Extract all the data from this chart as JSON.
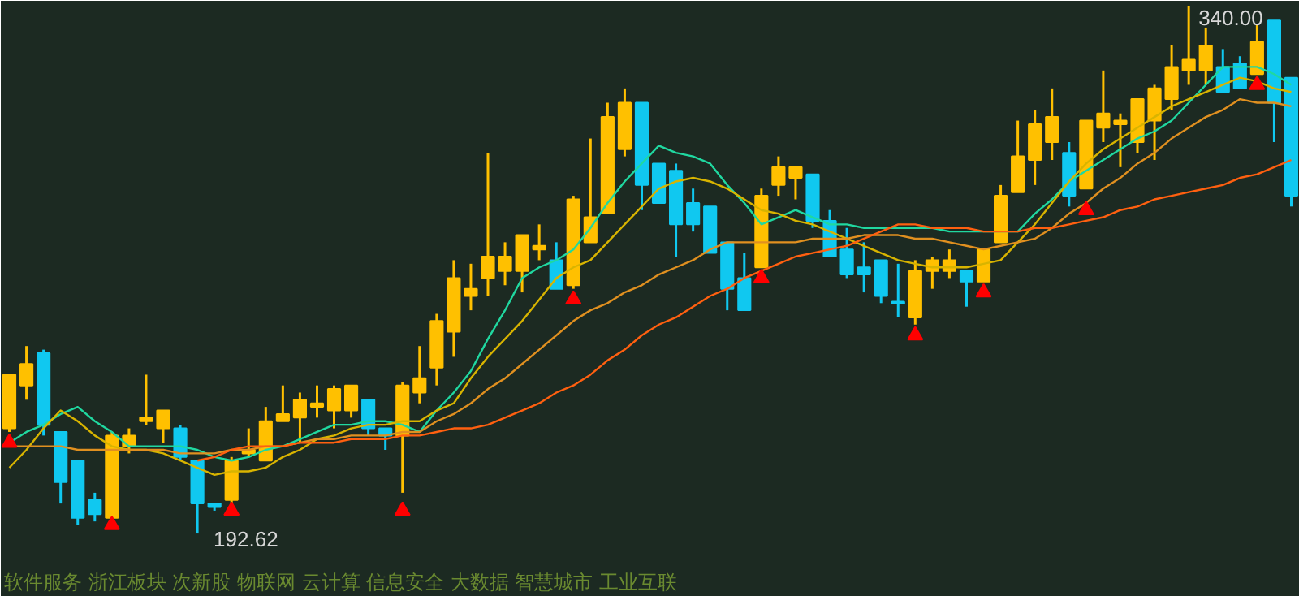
{
  "chart_data": {
    "type": "candlestick",
    "categories": [
      null,
      null,
      null,
      null,
      null,
      null,
      null,
      null,
      null,
      null,
      null,
      null,
      null,
      null,
      null,
      null,
      null,
      null,
      null,
      null,
      null,
      null,
      null,
      null,
      null,
      null,
      null,
      null,
      null,
      null,
      null,
      null,
      null,
      null,
      null,
      null,
      null,
      null,
      null,
      null,
      null,
      null,
      null,
      null,
      null,
      null,
      null,
      null,
      null,
      null,
      null,
      null,
      null,
      null,
      null,
      null,
      null,
      null,
      null,
      null,
      null,
      null,
      null,
      null,
      null,
      null,
      null,
      null,
      null,
      null,
      null,
      null,
      null,
      null,
      null,
      null
    ],
    "ohlc": [
      [
        222,
        237,
        221,
        237
      ],
      [
        234,
        245,
        230,
        240
      ],
      [
        243,
        244,
        220,
        223
      ],
      [
        221,
        221,
        201,
        207
      ],
      [
        213,
        213,
        195,
        197
      ],
      [
        202,
        204,
        196,
        198
      ],
      [
        197,
        221,
        196,
        220
      ],
      [
        217,
        222,
        215,
        220
      ],
      [
        224,
        237,
        223,
        225
      ],
      [
        222,
        227,
        218,
        227
      ],
      [
        222,
        223,
        213,
        214
      ],
      [
        213,
        213,
        192.62,
        201
      ],
      [
        201,
        201,
        199,
        200
      ],
      [
        202,
        214,
        201,
        213
      ],
      [
        215,
        222,
        214,
        216
      ],
      [
        213,
        228,
        213,
        224
      ],
      [
        224,
        234,
        224,
        226
      ],
      [
        225,
        232,
        218,
        230
      ],
      [
        228,
        234,
        225,
        229
      ],
      [
        227,
        234,
        222,
        233
      ],
      [
        227,
        234,
        225,
        234
      ],
      [
        230,
        230,
        220,
        222
      ],
      [
        222,
        222,
        216,
        220
      ],
      [
        220,
        235,
        204,
        234
      ],
      [
        232,
        245,
        229,
        236
      ],
      [
        239,
        254,
        234,
        252
      ],
      [
        249,
        269,
        242,
        264
      ],
      [
        259,
        268,
        255,
        261
      ],
      [
        264,
        299,
        259,
        270
      ],
      [
        266,
        274,
        262,
        270
      ],
      [
        266,
        276,
        260,
        276
      ],
      [
        272,
        279,
        269,
        273
      ],
      [
        269,
        274,
        261,
        261
      ],
      [
        262,
        287,
        261,
        286
      ],
      [
        274,
        303,
        274,
        281
      ],
      [
        282,
        313,
        282,
        309
      ],
      [
        300,
        317,
        298,
        313
      ],
      [
        313,
        313,
        283,
        290
      ],
      [
        296,
        296,
        285,
        285
      ],
      [
        294,
        296,
        270,
        279
      ],
      [
        285,
        289,
        277,
        279
      ],
      [
        284,
        284,
        271,
        271
      ],
      [
        274,
        274,
        255,
        261
      ],
      [
        264,
        271,
        255,
        255
      ],
      [
        267,
        289,
        267,
        287
      ],
      [
        290,
        298,
        287,
        295
      ],
      [
        292,
        295,
        286,
        295
      ],
      [
        293,
        293,
        278,
        280
      ],
      [
        280,
        283,
        270,
        270
      ],
      [
        272,
        278,
        264,
        265
      ],
      [
        267,
        274,
        260,
        265
      ],
      [
        269,
        269,
        257,
        259
      ],
      [
        257,
        268,
        253,
        257
      ],
      [
        253,
        269,
        251,
        266
      ],
      [
        266,
        270,
        261,
        269
      ],
      [
        266,
        272,
        264,
        269
      ],
      [
        266,
        266,
        256,
        263
      ],
      [
        263,
        272,
        263,
        272
      ],
      [
        274,
        290,
        274,
        287
      ],
      [
        288,
        308,
        288,
        298
      ],
      [
        297,
        311,
        290,
        307
      ],
      [
        302,
        317,
        297,
        309
      ],
      [
        299,
        302,
        284,
        287
      ],
      [
        289,
        308,
        289,
        308
      ],
      [
        306,
        322,
        302,
        310
      ],
      [
        307,
        310,
        295,
        308
      ],
      [
        302,
        314,
        299,
        314
      ],
      [
        308,
        318,
        297,
        317
      ],
      [
        314,
        329,
        311,
        323
      ],
      [
        322,
        340,
        318,
        325
      ],
      [
        322,
        334,
        318,
        329
      ],
      [
        323,
        328,
        316,
        316
      ],
      [
        324,
        326,
        317,
        317
      ],
      [
        321,
        335,
        321,
        330
      ],
      [
        336,
        336,
        302,
        313
      ],
      [
        320,
        320,
        284,
        287
      ]
    ],
    "colors": [
      "#ffc000",
      "#ffc000",
      "#10c8f0",
      "#10c8f0",
      "#10c8f0",
      "#10c8f0",
      "#ffc000",
      "#ffc000",
      "#ffc000",
      "#ffc000",
      "#10c8f0",
      "#10c8f0",
      "#10c8f0",
      "#ffc000",
      "#ffc000",
      "#ffc000",
      "#ffc000",
      "#ffc000",
      "#ffc000",
      "#ffc000",
      "#ffc000",
      "#10c8f0",
      "#10c8f0",
      "#ffc000",
      "#ffc000",
      "#ffc000",
      "#ffc000",
      "#ffc000",
      "#ffc000",
      "#ffc000",
      "#ffc000",
      "#ffc000",
      "#10c8f0",
      "#ffc000",
      "#ffc000",
      "#ffc000",
      "#ffc000",
      "#10c8f0",
      "#10c8f0",
      "#10c8f0",
      "#10c8f0",
      "#10c8f0",
      "#10c8f0",
      "#10c8f0",
      "#ffc000",
      "#ffc000",
      "#ffc000",
      "#10c8f0",
      "#10c8f0",
      "#10c8f0",
      "#10c8f0",
      "#10c8f0",
      "#10c8f0",
      "#ffc000",
      "#ffc000",
      "#ffc000",
      "#10c8f0",
      "#ffc000",
      "#ffc000",
      "#ffc000",
      "#ffc000",
      "#ffc000",
      "#10c8f0",
      "#ffc000",
      "#ffc000",
      "#ffc000",
      "#ffc000",
      "#ffc000",
      "#ffc000",
      "#ffc000",
      "#ffc000",
      "#10c8f0",
      "#10c8f0",
      "#ffc000",
      "#10c8f0",
      "#10c8f0"
    ],
    "series": [
      {
        "type": "line",
        "color": "#20d8a0",
        "values": [
          218,
          221,
          223,
          226,
          228,
          224,
          221,
          217,
          217,
          217,
          217,
          216,
          214,
          213,
          214,
          216,
          217,
          219,
          221,
          223,
          223,
          224,
          224,
          223,
          221,
          227,
          232,
          238,
          247,
          255,
          264,
          267,
          269,
          272,
          278,
          285,
          291,
          296,
          301,
          299,
          298,
          296,
          290,
          285,
          279,
          281,
          283,
          281,
          279,
          279,
          278,
          278,
          278,
          278,
          278,
          277,
          277,
          277,
          277,
          277,
          282,
          286,
          291,
          294,
          297,
          300,
          303,
          305,
          308,
          313,
          318,
          323,
          323,
          323,
          321,
          318
        ]
      },
      {
        "type": "line",
        "color": "#d8b400",
        "values": [
          211,
          216,
          222,
          227,
          224,
          220,
          217,
          216,
          216,
          215,
          213,
          211,
          209,
          210,
          210,
          211,
          214,
          216,
          219,
          220,
          222,
          223,
          223,
          224,
          224,
          227,
          229,
          236,
          242,
          247,
          252,
          258,
          264,
          267,
          269,
          274,
          279,
          284,
          289,
          291,
          292,
          291,
          289,
          286,
          283,
          282,
          280,
          279,
          277,
          275,
          273,
          271,
          269,
          268,
          267,
          267,
          267,
          268,
          269,
          274,
          279,
          285,
          291,
          296,
          300,
          303,
          306,
          309,
          312,
          314,
          316,
          318,
          320,
          319,
          317,
          316
        ]
      },
      {
        "type": "line",
        "color": "#e09020",
        "values": [
          217,
          217,
          217,
          217,
          216,
          216,
          216,
          216,
          216,
          216,
          215,
          215,
          215,
          216,
          216,
          217,
          217,
          218,
          219,
          219,
          220,
          220,
          220,
          221,
          221,
          224,
          226,
          229,
          233,
          236,
          240,
          244,
          248,
          252,
          255,
          257,
          260,
          262,
          265,
          267,
          269,
          272,
          274,
          274,
          274,
          274,
          274,
          275,
          275,
          275,
          276,
          276,
          276,
          275,
          275,
          274,
          273,
          272,
          273,
          274,
          275,
          278,
          282,
          285,
          289,
          292,
          296,
          299,
          303,
          306,
          309,
          311,
          314,
          313,
          313,
          312
        ]
      },
      {
        "type": "line",
        "color": "#ff6010",
        "values": [
          null,
          null,
          null,
          null,
          null,
          null,
          null,
          null,
          null,
          null,
          null,
          213,
          214,
          216,
          217,
          217,
          217,
          218,
          218,
          218,
          219,
          219,
          219,
          220,
          220,
          221,
          222,
          222,
          223,
          225,
          227,
          229,
          232,
          234,
          237,
          241,
          244,
          248,
          251,
          253,
          256,
          259,
          261,
          264,
          266,
          268,
          270,
          271,
          272,
          273,
          275,
          277,
          279,
          279,
          278,
          278,
          278,
          277,
          277,
          277,
          278,
          278,
          279,
          280,
          281,
          283,
          284,
          286,
          287,
          288,
          289,
          290,
          292,
          293,
          295,
          297
        ]
      },
      {
        "type": "scatter",
        "marker": "triangle",
        "color": "#ff0000",
        "values": [
          218,
          null,
          null,
          null,
          null,
          null,
          195,
          null,
          null,
          null,
          null,
          null,
          null,
          199,
          null,
          null,
          null,
          null,
          null,
          null,
          null,
          null,
          null,
          199,
          null,
          null,
          null,
          null,
          null,
          null,
          null,
          null,
          null,
          258,
          null,
          null,
          null,
          null,
          null,
          null,
          null,
          null,
          null,
          null,
          264,
          null,
          null,
          null,
          null,
          null,
          null,
          null,
          null,
          248,
          null,
          null,
          null,
          260,
          null,
          null,
          null,
          null,
          null,
          283,
          null,
          null,
          null,
          null,
          null,
          null,
          null,
          null,
          null,
          318,
          null,
          null
        ]
      }
    ],
    "annotations": [
      "340.00",
      "192.62",
      "软件服务 浙江板块 次新股 物联网 云计算 信息安全 大数据 智慧城市 工业互联"
    ],
    "grid": false,
    "tick_labels": false
  }
}
